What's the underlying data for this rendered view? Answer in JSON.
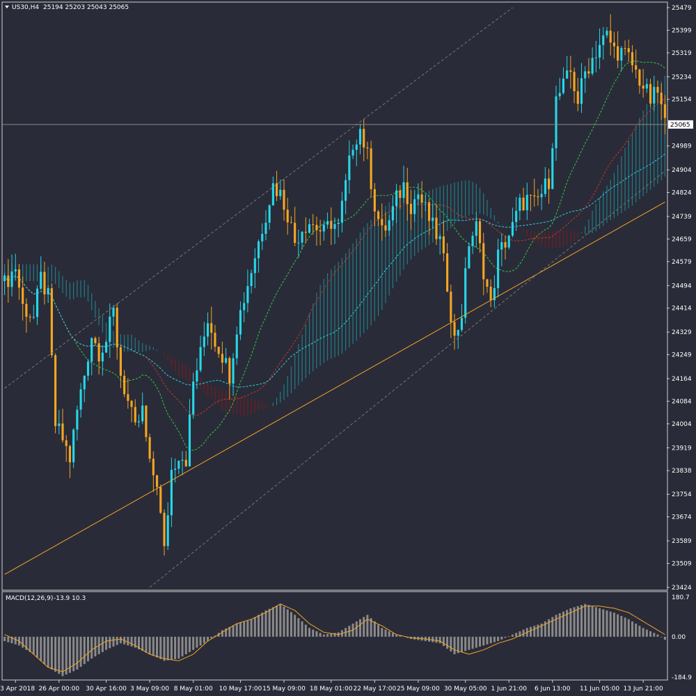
{
  "header": {
    "symbol_tf": "US30,H4",
    "ohlc": "25194 25203 25043 25065",
    "menu_icon": "triangle-down-icon"
  },
  "macd_header": {
    "label": "MACD(12,26,9)",
    "values": "-13.9 10.3"
  },
  "colors": {
    "background": "#2a2b38",
    "bull": "#26d7e8",
    "bear": "#f5a623",
    "cloud_bull": "#1a9aa3",
    "cloud_bear": "#8b1a1a",
    "trendline": "#f5a623",
    "price_line": "#8a8a8a",
    "macd_hist": "#8a8a8a",
    "macd_signal": "#f5a623"
  },
  "chart_data": [
    {
      "type": "candlestick",
      "title": "US30,H4",
      "y_ticks": [
        25479,
        25399,
        25319,
        25234,
        25154,
        25065,
        24989,
        24904,
        24824,
        24739,
        24659,
        24579,
        24494,
        24414,
        24329,
        24249,
        24164,
        24084,
        24004,
        23919,
        23838,
        23754,
        23674,
        23589,
        23509,
        23424
      ],
      "current_price": 25065,
      "x_ticks": [
        "23 Apr 2018",
        "26 Apr 00:00",
        "30 Apr 16:00",
        "3 May 09:00",
        "8 May 01:00",
        "10 May 17:00",
        "15 May 09:00",
        "18 May 01:00",
        "22 May 17:00",
        "25 May 09:00",
        "30 May 05:00",
        "1 Jun 21:00",
        "6 Jun 13:00",
        "11 Jun 05:00",
        "13 Jun 21:00"
      ],
      "ylim": [
        23424,
        25479
      ],
      "close_path": [
        [
          0,
          24500
        ],
        [
          3,
          24560
        ],
        [
          5,
          24420
        ],
        [
          8,
          24380
        ],
        [
          10,
          24520
        ],
        [
          12,
          24450
        ],
        [
          14,
          24000
        ],
        [
          16,
          23950
        ],
        [
          18,
          23880
        ],
        [
          20,
          24050
        ],
        [
          22,
          24180
        ],
        [
          24,
          24320
        ],
        [
          26,
          24260
        ],
        [
          28,
          24300
        ],
        [
          30,
          24400
        ],
        [
          32,
          24180
        ],
        [
          34,
          24080
        ],
        [
          36,
          23980
        ],
        [
          38,
          24050
        ],
        [
          40,
          23850
        ],
        [
          42,
          23800
        ],
        [
          44,
          23550
        ],
        [
          46,
          23840
        ],
        [
          48,
          23900
        ],
        [
          50,
          23880
        ],
        [
          52,
          24150
        ],
        [
          54,
          24250
        ],
        [
          56,
          24380
        ],
        [
          58,
          24300
        ],
        [
          60,
          24250
        ],
        [
          62,
          24180
        ],
        [
          64,
          24350
        ],
        [
          66,
          24450
        ],
        [
          68,
          24550
        ],
        [
          70,
          24650
        ],
        [
          72,
          24750
        ],
        [
          74,
          24850
        ],
        [
          76,
          24820
        ],
        [
          78,
          24750
        ],
        [
          80,
          24650
        ],
        [
          82,
          24700
        ],
        [
          84,
          24720
        ],
        [
          86,
          24700
        ],
        [
          88,
          24680
        ],
        [
          90,
          24720
        ],
        [
          92,
          24700
        ],
        [
          94,
          24850
        ],
        [
          96,
          25000
        ],
        [
          98,
          25050
        ],
        [
          100,
          24950
        ],
        [
          102,
          24780
        ],
        [
          104,
          24680
        ],
        [
          106,
          24720
        ],
        [
          108,
          24800
        ],
        [
          110,
          24850
        ],
        [
          112,
          24780
        ],
        [
          114,
          24820
        ],
        [
          116,
          24760
        ],
        [
          118,
          24700
        ],
        [
          120,
          24650
        ],
        [
          122,
          24500
        ],
        [
          124,
          24300
        ],
        [
          126,
          24400
        ],
        [
          128,
          24650
        ],
        [
          130,
          24700
        ],
        [
          132,
          24550
        ],
        [
          134,
          24420
        ],
        [
          136,
          24600
        ],
        [
          138,
          24650
        ],
        [
          140,
          24700
        ],
        [
          142,
          24780
        ],
        [
          144,
          24800
        ],
        [
          146,
          24780
        ],
        [
          148,
          24820
        ],
        [
          150,
          24870
        ],
        [
          152,
          25150
        ],
        [
          154,
          25200
        ],
        [
          156,
          25250
        ],
        [
          158,
          25150
        ],
        [
          160,
          25250
        ],
        [
          162,
          25300
        ],
        [
          164,
          25350
        ],
        [
          166,
          25380
        ],
        [
          168,
          25330
        ],
        [
          170,
          25320
        ],
        [
          172,
          25300
        ],
        [
          174,
          25250
        ],
        [
          176,
          25200
        ],
        [
          178,
          25150
        ],
        [
          180,
          25180
        ],
        [
          182,
          25065
        ]
      ],
      "trendline": {
        "start": [
          0,
          23470
        ],
        "end": [
          182,
          24790
        ]
      }
    },
    {
      "type": "bar",
      "title": "MACD(12,26,9)",
      "y_ticks": [
        180.7,
        0.0,
        -184.9
      ],
      "ylim": [
        -184.9,
        180.7
      ],
      "histogram": [
        [
          0,
          -20
        ],
        [
          4,
          -40
        ],
        [
          8,
          -80
        ],
        [
          12,
          -140
        ],
        [
          16,
          -180
        ],
        [
          20,
          -150
        ],
        [
          24,
          -100
        ],
        [
          28,
          -60
        ],
        [
          32,
          -30
        ],
        [
          36,
          -50
        ],
        [
          40,
          -80
        ],
        [
          44,
          -110
        ],
        [
          48,
          -100
        ],
        [
          52,
          -60
        ],
        [
          56,
          -20
        ],
        [
          60,
          30
        ],
        [
          64,
          60
        ],
        [
          68,
          80
        ],
        [
          72,
          120
        ],
        [
          76,
          150
        ],
        [
          80,
          100
        ],
        [
          84,
          40
        ],
        [
          88,
          10
        ],
        [
          92,
          20
        ],
        [
          96,
          60
        ],
        [
          100,
          100
        ],
        [
          104,
          40
        ],
        [
          108,
          10
        ],
        [
          112,
          -10
        ],
        [
          116,
          -20
        ],
        [
          120,
          -30
        ],
        [
          124,
          -80
        ],
        [
          128,
          -60
        ],
        [
          132,
          -40
        ],
        [
          136,
          -20
        ],
        [
          140,
          10
        ],
        [
          144,
          40
        ],
        [
          148,
          60
        ],
        [
          152,
          100
        ],
        [
          156,
          130
        ],
        [
          160,
          150
        ],
        [
          164,
          130
        ],
        [
          168,
          110
        ],
        [
          172,
          80
        ],
        [
          176,
          40
        ],
        [
          180,
          10
        ],
        [
          182,
          -14
        ]
      ],
      "signal": [
        [
          0,
          10
        ],
        [
          4,
          -20
        ],
        [
          8,
          -80
        ],
        [
          12,
          -140
        ],
        [
          16,
          -160
        ],
        [
          20,
          -120
        ],
        [
          24,
          -60
        ],
        [
          28,
          -20
        ],
        [
          32,
          -10
        ],
        [
          36,
          -40
        ],
        [
          40,
          -80
        ],
        [
          44,
          -100
        ],
        [
          48,
          -110
        ],
        [
          52,
          -80
        ],
        [
          56,
          -20
        ],
        [
          60,
          20
        ],
        [
          64,
          60
        ],
        [
          68,
          80
        ],
        [
          72,
          110
        ],
        [
          76,
          150
        ],
        [
          80,
          120
        ],
        [
          84,
          60
        ],
        [
          88,
          20
        ],
        [
          92,
          10
        ],
        [
          96,
          30
        ],
        [
          100,
          80
        ],
        [
          104,
          50
        ],
        [
          108,
          10
        ],
        [
          112,
          -5
        ],
        [
          116,
          -10
        ],
        [
          120,
          -20
        ],
        [
          124,
          -60
        ],
        [
          128,
          -80
        ],
        [
          132,
          -60
        ],
        [
          136,
          -30
        ],
        [
          140,
          -10
        ],
        [
          144,
          20
        ],
        [
          148,
          50
        ],
        [
          152,
          80
        ],
        [
          156,
          110
        ],
        [
          160,
          140
        ],
        [
          164,
          140
        ],
        [
          168,
          130
        ],
        [
          172,
          110
        ],
        [
          176,
          70
        ],
        [
          180,
          30
        ],
        [
          182,
          10
        ]
      ]
    }
  ]
}
